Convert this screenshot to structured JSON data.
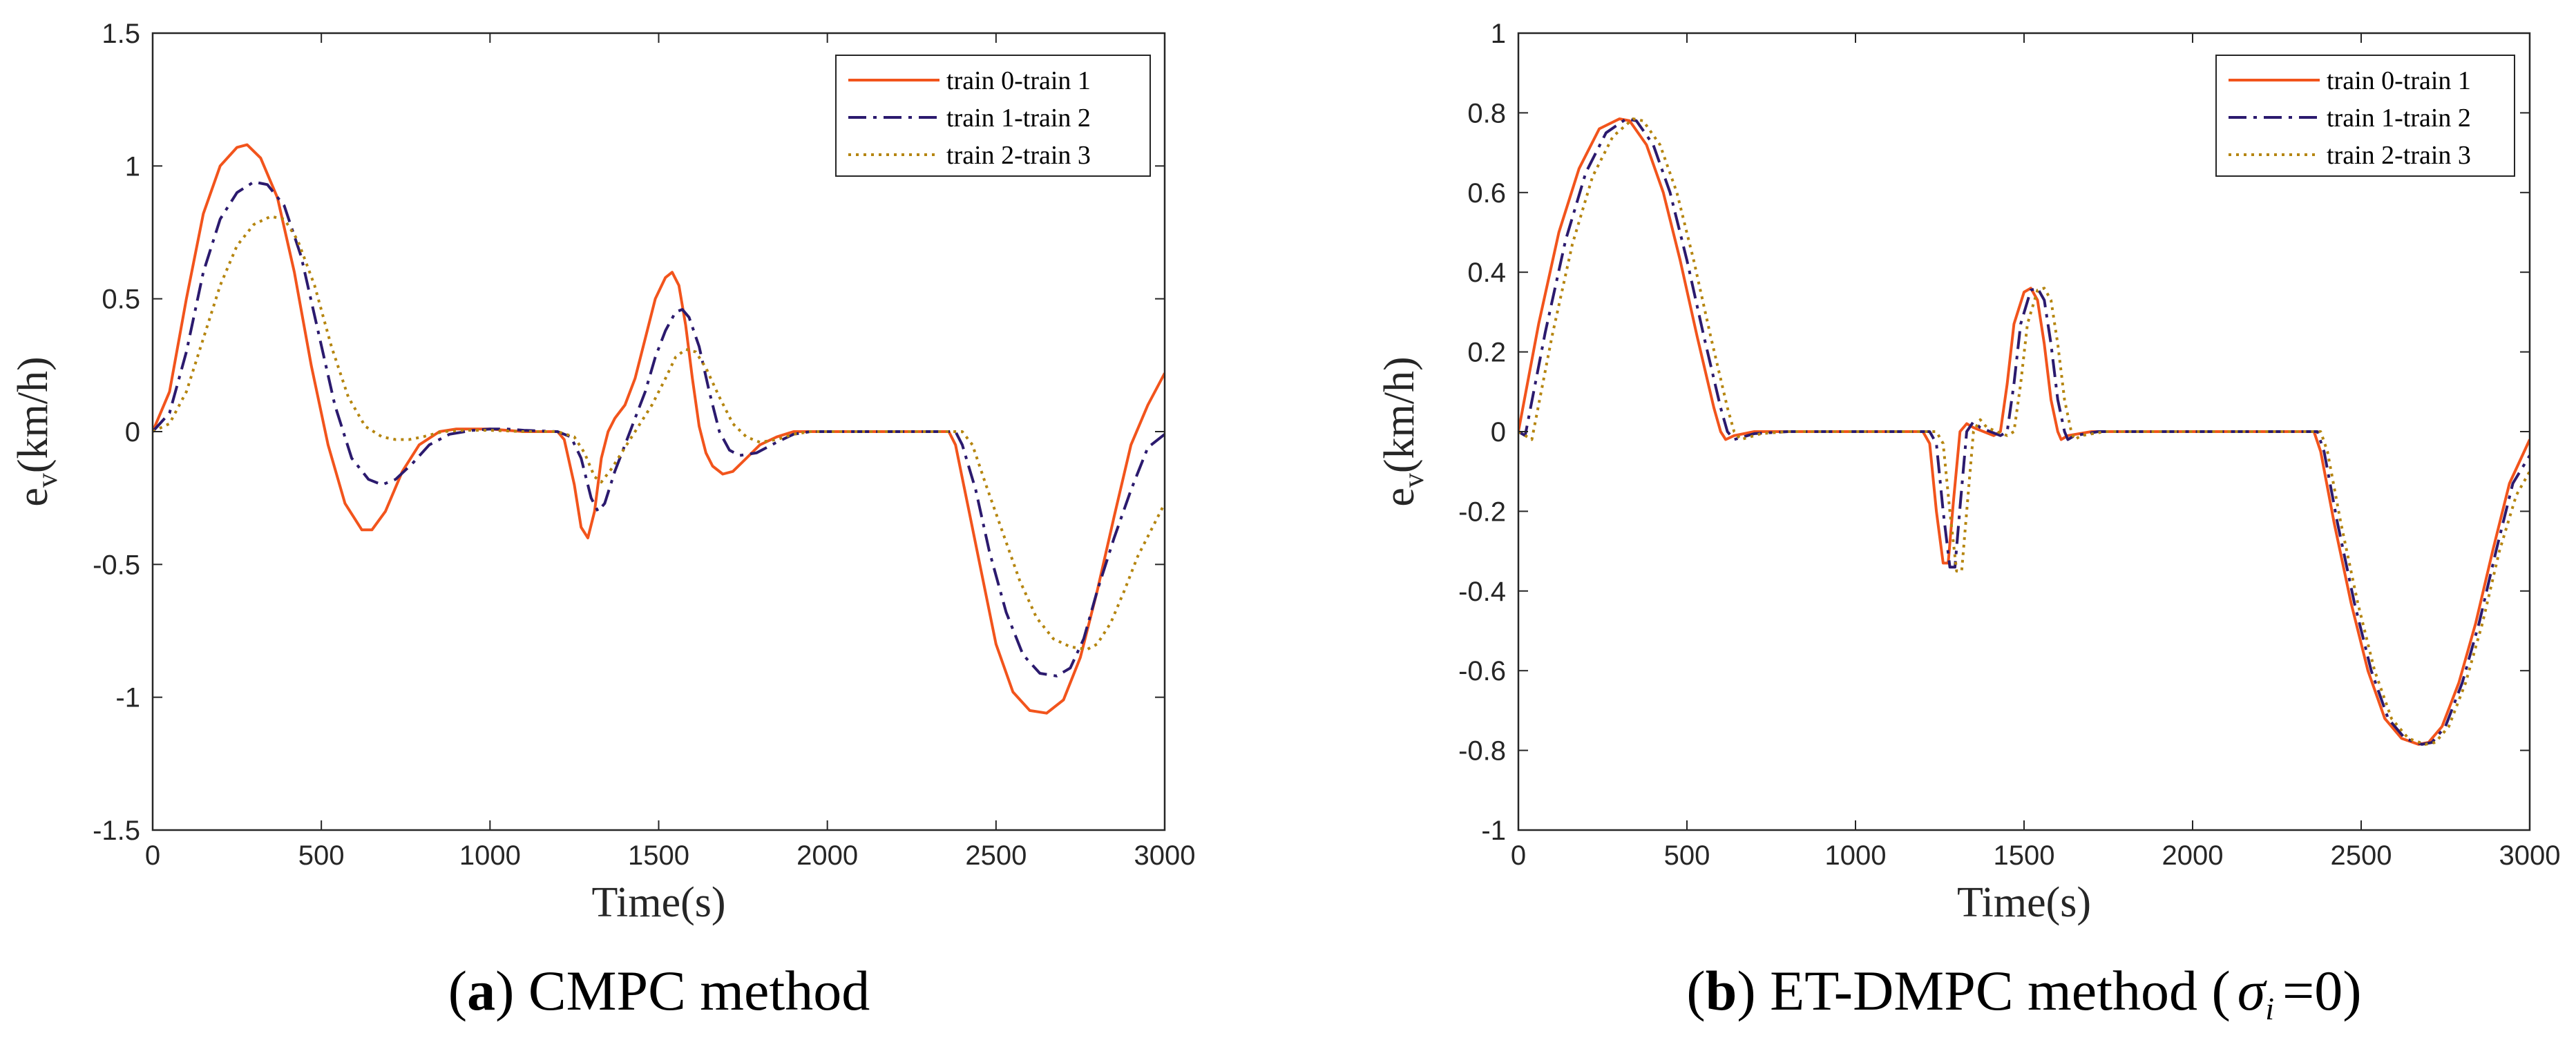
{
  "chart_data": [
    {
      "type": "line",
      "id": "a",
      "caption_letter": "a",
      "caption_text": "CMPC method",
      "xlabel": "Time(s)",
      "ylabel_main": "e",
      "ylabel_sub": "v",
      "ylabel_unit": "(km/h)",
      "xlim": [
        0,
        3000
      ],
      "ylim": [
        -1.5,
        1.5
      ],
      "xticks": [
        0,
        500,
        1000,
        1500,
        2000,
        2500,
        3000
      ],
      "yticks": [
        -1.5,
        -1,
        -0.5,
        0,
        0.5,
        1,
        1.5
      ],
      "xtick_labels": [
        "0",
        "500",
        "1000",
        "1500",
        "2000",
        "2500",
        "3000"
      ],
      "ytick_labels": [
        "-1.5",
        "-1",
        "-0.5",
        "0",
        "0.5",
        "1",
        "1.5"
      ],
      "legend_position": "top-right",
      "series": [
        {
          "name": "train 0-train 1",
          "color": "#f2541c",
          "style": "solid",
          "x": [
            0,
            50,
            100,
            150,
            200,
            250,
            280,
            320,
            370,
            420,
            470,
            520,
            570,
            620,
            650,
            690,
            740,
            790,
            850,
            900,
            950,
            1000,
            1050,
            1100,
            1150,
            1200,
            1220,
            1250,
            1270,
            1290,
            1310,
            1330,
            1350,
            1370,
            1400,
            1430,
            1460,
            1490,
            1520,
            1540,
            1560,
            1580,
            1600,
            1620,
            1640,
            1660,
            1690,
            1720,
            1760,
            1800,
            1850,
            1900,
            1950,
            2000,
            2100,
            2200,
            2300,
            2360,
            2380,
            2420,
            2460,
            2500,
            2550,
            2600,
            2650,
            2700,
            2750,
            2800,
            2850,
            2900,
            2950,
            3000
          ],
          "values": [
            0,
            0.15,
            0.5,
            0.82,
            1.0,
            1.07,
            1.08,
            1.03,
            0.88,
            0.6,
            0.25,
            -0.05,
            -0.27,
            -0.37,
            -0.37,
            -0.3,
            -0.15,
            -0.05,
            0,
            0.01,
            0.01,
            0.01,
            0.005,
            0,
            0,
            0,
            -0.03,
            -0.2,
            -0.36,
            -0.4,
            -0.3,
            -0.1,
            0,
            0.05,
            0.1,
            0.2,
            0.35,
            0.5,
            0.58,
            0.6,
            0.55,
            0.4,
            0.2,
            0.02,
            -0.08,
            -0.13,
            -0.16,
            -0.15,
            -0.1,
            -0.05,
            -0.02,
            0,
            0,
            0,
            0,
            0,
            0,
            0,
            -0.05,
            -0.3,
            -0.55,
            -0.8,
            -0.98,
            -1.05,
            -1.06,
            -1.01,
            -0.85,
            -0.6,
            -0.32,
            -0.05,
            0.1,
            0.22
          ]
        },
        {
          "name": "train 1-train 2",
          "color": "#2b1a6e",
          "style": "dashdot",
          "x": [
            0,
            50,
            100,
            150,
            200,
            250,
            300,
            340,
            390,
            440,
            490,
            540,
            590,
            640,
            680,
            720,
            770,
            820,
            880,
            950,
            1000,
            1050,
            1100,
            1200,
            1240,
            1270,
            1300,
            1320,
            1340,
            1370,
            1400,
            1430,
            1460,
            1490,
            1520,
            1550,
            1570,
            1590,
            1620,
            1650,
            1680,
            1710,
            1740,
            1790,
            1850,
            1900,
            1950,
            2000,
            2100,
            2200,
            2300,
            2380,
            2400,
            2440,
            2480,
            2530,
            2580,
            2630,
            2680,
            2720,
            2760,
            2800,
            2850,
            2900,
            2950,
            3000
          ],
          "values": [
            0,
            0.07,
            0.3,
            0.6,
            0.8,
            0.9,
            0.94,
            0.93,
            0.85,
            0.66,
            0.38,
            0.1,
            -0.1,
            -0.18,
            -0.2,
            -0.18,
            -0.12,
            -0.05,
            -0.01,
            0.005,
            0.01,
            0.01,
            0.005,
            0,
            -0.02,
            -0.1,
            -0.25,
            -0.3,
            -0.27,
            -0.15,
            -0.05,
            0.05,
            0.15,
            0.28,
            0.38,
            0.45,
            0.46,
            0.43,
            0.32,
            0.15,
            0.0,
            -0.07,
            -0.09,
            -0.08,
            -0.04,
            -0.01,
            0,
            0,
            0,
            0,
            0,
            0,
            -0.05,
            -0.22,
            -0.45,
            -0.68,
            -0.84,
            -0.91,
            -0.92,
            -0.89,
            -0.78,
            -0.6,
            -0.4,
            -0.22,
            -0.06,
            -0.01
          ]
        },
        {
          "name": "train 2-train 3",
          "color": "#b5850f",
          "style": "dotted",
          "x": [
            0,
            50,
            100,
            150,
            200,
            250,
            300,
            350,
            390,
            430,
            480,
            530,
            580,
            630,
            680,
            720,
            760,
            800,
            860,
            920,
            1000,
            1100,
            1200,
            1250,
            1280,
            1310,
            1330,
            1360,
            1400,
            1440,
            1480,
            1520,
            1550,
            1580,
            1610,
            1640,
            1680,
            1720,
            1760,
            1800,
            1850,
            1900,
            1950,
            2000,
            2100,
            2200,
            2300,
            2400,
            2430,
            2470,
            2520,
            2570,
            2620,
            2670,
            2720,
            2770,
            2800,
            2840,
            2880,
            2920,
            2960,
            3000
          ],
          "values": [
            0,
            0.03,
            0.15,
            0.35,
            0.55,
            0.7,
            0.78,
            0.81,
            0.8,
            0.72,
            0.55,
            0.32,
            0.13,
            0.02,
            -0.02,
            -0.03,
            -0.03,
            -0.02,
            0,
            0.005,
            0.005,
            0,
            0,
            -0.02,
            -0.08,
            -0.17,
            -0.19,
            -0.14,
            -0.06,
            0.02,
            0.1,
            0.2,
            0.28,
            0.31,
            0.3,
            0.24,
            0.13,
            0.03,
            -0.02,
            -0.04,
            -0.03,
            -0.01,
            0,
            0,
            0,
            0,
            0,
            0,
            -0.05,
            -0.2,
            -0.38,
            -0.56,
            -0.7,
            -0.78,
            -0.81,
            -0.82,
            -0.8,
            -0.72,
            -0.6,
            -0.47,
            -0.37,
            -0.27
          ]
        }
      ]
    },
    {
      "type": "line",
      "id": "b",
      "caption_letter": "b",
      "caption_text": "ET-DMPC method (",
      "caption_sigma": "σ",
      "caption_sub": "i",
      "caption_eq": "=0)",
      "xlabel": "Time(s)",
      "ylabel_main": "e",
      "ylabel_sub": "v",
      "ylabel_unit": "(km/h)",
      "xlim": [
        0,
        3000
      ],
      "ylim": [
        -1,
        1
      ],
      "xticks": [
        0,
        500,
        1000,
        1500,
        2000,
        2500,
        3000
      ],
      "yticks": [
        -1,
        -0.8,
        -0.6,
        -0.4,
        -0.2,
        0,
        0.2,
        0.4,
        0.6,
        0.8,
        1
      ],
      "xtick_labels": [
        "0",
        "500",
        "1000",
        "1500",
        "2000",
        "2500",
        "3000"
      ],
      "ytick_labels": [
        "-1",
        "-0.8",
        "-0.6",
        "-0.4",
        "-0.2",
        "0",
        "0.2",
        "0.4",
        "0.6",
        "0.8",
        "1"
      ],
      "legend_position": "top-right",
      "series": [
        {
          "name": "train 0-train 1",
          "color": "#f2541c",
          "style": "solid",
          "x": [
            0,
            60,
            120,
            180,
            240,
            300,
            330,
            380,
            430,
            480,
            530,
            580,
            600,
            615,
            640,
            700,
            800,
            1000,
            1200,
            1220,
            1240,
            1260,
            1275,
            1290,
            1310,
            1330,
            1350,
            1380,
            1410,
            1430,
            1450,
            1470,
            1500,
            1520,
            1540,
            1560,
            1580,
            1600,
            1610,
            1630,
            1700,
            1800,
            2000,
            2200,
            2360,
            2380,
            2420,
            2470,
            2520,
            2570,
            2620,
            2670,
            2700,
            2740,
            2790,
            2840,
            2890,
            2940,
            3000
          ],
          "values": [
            0,
            0.27,
            0.5,
            0.66,
            0.76,
            0.785,
            0.78,
            0.72,
            0.6,
            0.43,
            0.24,
            0.06,
            0.0,
            -0.02,
            -0.01,
            0,
            0,
            0,
            0,
            -0.03,
            -0.2,
            -0.33,
            -0.33,
            -0.18,
            0.0,
            0.02,
            0.01,
            0.0,
            -0.01,
            0.0,
            0.12,
            0.27,
            0.35,
            0.36,
            0.33,
            0.22,
            0.08,
            0.0,
            -0.02,
            -0.01,
            0,
            0,
            0,
            0,
            0,
            -0.05,
            -0.23,
            -0.43,
            -0.6,
            -0.72,
            -0.77,
            -0.785,
            -0.78,
            -0.74,
            -0.63,
            -0.48,
            -0.3,
            -0.13,
            -0.02
          ]
        },
        {
          "name": "train 1-train 2",
          "color": "#2b1a6e",
          "style": "dashdot",
          "x": [
            0,
            20,
            80,
            140,
            200,
            260,
            320,
            350,
            400,
            450,
            500,
            550,
            600,
            620,
            640,
            700,
            800,
            1000,
            1220,
            1240,
            1260,
            1280,
            1295,
            1310,
            1330,
            1350,
            1370,
            1400,
            1430,
            1450,
            1470,
            1490,
            1520,
            1540,
            1560,
            1580,
            1600,
            1620,
            1630,
            1650,
            1720,
            1800,
            2000,
            2200,
            2370,
            2390,
            2430,
            2480,
            2530,
            2580,
            2630,
            2680,
            2710,
            2750,
            2800,
            2850,
            2900,
            2950,
            3000
          ],
          "values": [
            0,
            -0.01,
            0.25,
            0.48,
            0.65,
            0.75,
            0.785,
            0.78,
            0.72,
            0.6,
            0.43,
            0.24,
            0.06,
            0.0,
            -0.02,
            -0.005,
            0,
            0,
            0,
            -0.03,
            -0.2,
            -0.34,
            -0.34,
            -0.19,
            0.0,
            0.025,
            0.01,
            0.0,
            -0.01,
            0.0,
            0.12,
            0.27,
            0.355,
            0.36,
            0.33,
            0.22,
            0.08,
            0.0,
            -0.02,
            -0.01,
            0,
            0,
            0,
            0,
            0,
            -0.05,
            -0.23,
            -0.43,
            -0.6,
            -0.72,
            -0.77,
            -0.785,
            -0.78,
            -0.74,
            -0.63,
            -0.48,
            -0.3,
            -0.13,
            -0.06
          ]
        },
        {
          "name": "train 2-train 3",
          "color": "#b5850f",
          "style": "dotted",
          "x": [
            0,
            40,
            100,
            160,
            220,
            280,
            340,
            370,
            420,
            470,
            520,
            570,
            620,
            640,
            660,
            720,
            800,
            1000,
            1240,
            1260,
            1280,
            1300,
            1315,
            1330,
            1350,
            1370,
            1390,
            1420,
            1450,
            1470,
            1490,
            1510,
            1540,
            1560,
            1580,
            1600,
            1620,
            1640,
            1650,
            1670,
            1740,
            1800,
            2000,
            2200,
            2380,
            2400,
            2440,
            2490,
            2540,
            2590,
            2640,
            2690,
            2720,
            2760,
            2810,
            2860,
            2910,
            2960,
            3000
          ],
          "values": [
            0,
            -0.02,
            0.24,
            0.47,
            0.64,
            0.74,
            0.785,
            0.78,
            0.72,
            0.6,
            0.43,
            0.24,
            0.06,
            0.0,
            -0.02,
            -0.005,
            0,
            0,
            0,
            -0.03,
            -0.2,
            -0.35,
            -0.35,
            -0.2,
            0.0,
            0.03,
            0.01,
            0.0,
            -0.01,
            0.0,
            0.12,
            0.27,
            0.355,
            0.36,
            0.33,
            0.22,
            0.08,
            0.0,
            -0.02,
            -0.01,
            0,
            0,
            0,
            0,
            0,
            -0.05,
            -0.23,
            -0.43,
            -0.6,
            -0.72,
            -0.77,
            -0.785,
            -0.78,
            -0.74,
            -0.63,
            -0.48,
            -0.3,
            -0.16,
            -0.1
          ]
        }
      ]
    }
  ]
}
